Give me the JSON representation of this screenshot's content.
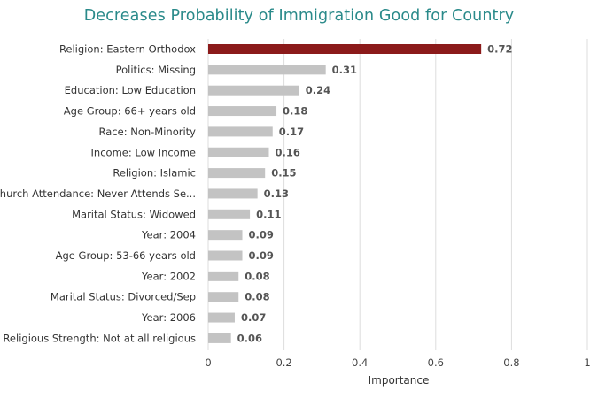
{
  "chart_data": {
    "type": "bar",
    "orientation": "horizontal",
    "title": "Decreases Probability of Immigration Good for Country",
    "xlabel": "Importance",
    "ylabel": "",
    "xlim": [
      0,
      1
    ],
    "xticks": [
      "0",
      "0.2",
      "0.4",
      "0.6",
      "0.8",
      "1"
    ],
    "grid": true,
    "categories": [
      "Religion: Eastern Orthodox",
      "Politics: Missing",
      "Education: Low Education",
      "Age Group: 66+ years old",
      "Race: Non-Minority",
      "Income: Low Income",
      "Religion: Islamic",
      "Church Attendance: Never Attends Se...",
      "Marital Status: Widowed",
      "Year: 2004",
      "Age Group: 53-66 years old",
      "Year: 2002",
      "Marital Status: Divorced/Sep",
      "Year: 2006",
      "Religious Strength: Not at all religious"
    ],
    "values": [
      0.72,
      0.31,
      0.24,
      0.18,
      0.17,
      0.16,
      0.15,
      0.13,
      0.11,
      0.09,
      0.09,
      0.08,
      0.08,
      0.07,
      0.06
    ],
    "value_labels": [
      "0.72",
      "0.31",
      "0.24",
      "0.18",
      "0.17",
      "0.16",
      "0.15",
      "0.13",
      "0.11",
      "0.09",
      "0.09",
      "0.08",
      "0.08",
      "0.07",
      "0.06"
    ],
    "colors": {
      "highlight": "#8b1a1a",
      "default": "#c3c3c3",
      "grid": "#dddddd",
      "title": "#2a8a8a"
    }
  }
}
